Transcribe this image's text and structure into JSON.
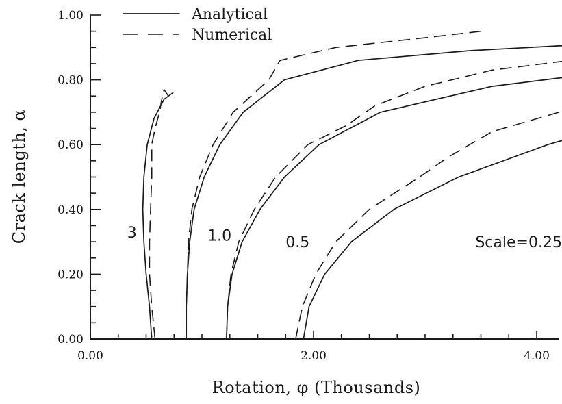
{
  "chart_data": {
    "type": "line",
    "xlabel": "Rotation, φ (Thousands)",
    "ylabel": "Crack length, α",
    "xlim": [
      0,
      5
    ],
    "ylim": [
      0,
      1
    ],
    "x_ticks": [
      {
        "value": 0,
        "label": "0.00"
      },
      {
        "value": 2,
        "label": "2.00"
      },
      {
        "value": 4,
        "label": "4.00"
      }
    ],
    "x_minor_step": 0.25,
    "y_ticks": [
      {
        "value": 0,
        "label": "0.00"
      },
      {
        "value": 0.2,
        "label": "0.20"
      },
      {
        "value": 0.4,
        "label": "0.40"
      },
      {
        "value": 0.6,
        "label": "0.60"
      },
      {
        "value": 0.8,
        "label": "0.80"
      },
      {
        "value": 1.0,
        "label": "1.00"
      }
    ],
    "y_minor_step": 0.05,
    "grid": false,
    "legend": {
      "placement": "top-left",
      "entries": [
        {
          "name": "Analytical",
          "style": "solid"
        },
        {
          "name": "Numerical",
          "style": "dashed"
        }
      ]
    },
    "curve_labels": [
      {
        "text": "3",
        "x": 0.33,
        "y": 0.33
      },
      {
        "text": "1.0",
        "x": 1.05,
        "y": 0.32
      },
      {
        "text": "0.5",
        "x": 1.75,
        "y": 0.3
      },
      {
        "text": "Scale=0.25",
        "x": 3.45,
        "y": 0.3
      }
    ],
    "series": [
      {
        "scale": "3",
        "style": "solid",
        "points": [
          [
            0.55,
            0.0
          ],
          [
            0.53,
            0.1
          ],
          [
            0.5,
            0.2
          ],
          [
            0.48,
            0.3
          ],
          [
            0.47,
            0.4
          ],
          [
            0.48,
            0.5
          ],
          [
            0.51,
            0.6
          ],
          [
            0.57,
            0.68
          ],
          [
            0.66,
            0.74
          ],
          [
            0.74,
            0.76
          ]
        ]
      },
      {
        "scale": "3",
        "style": "dashed",
        "points": [
          [
            0.58,
            0.0
          ],
          [
            0.55,
            0.1
          ],
          [
            0.53,
            0.2
          ],
          [
            0.53,
            0.3
          ],
          [
            0.54,
            0.4
          ],
          [
            0.55,
            0.5
          ],
          [
            0.55,
            0.6
          ],
          [
            0.58,
            0.65
          ],
          [
            0.62,
            0.7
          ],
          [
            0.64,
            0.74
          ],
          [
            0.66,
            0.77
          ],
          [
            0.7,
            0.75
          ]
        ]
      },
      {
        "scale": "1.0",
        "style": "solid",
        "points": [
          [
            0.86,
            0.0
          ],
          [
            0.86,
            0.1
          ],
          [
            0.87,
            0.2
          ],
          [
            0.89,
            0.3
          ],
          [
            0.93,
            0.4
          ],
          [
            1.02,
            0.5
          ],
          [
            1.16,
            0.6
          ],
          [
            1.37,
            0.7
          ],
          [
            1.74,
            0.8
          ],
          [
            2.4,
            0.86
          ],
          [
            3.4,
            0.89
          ],
          [
            4.2,
            0.905
          ],
          [
            5.0,
            0.915
          ]
        ]
      },
      {
        "scale": "1.0",
        "style": "dashed",
        "points": [
          [
            0.86,
            0.0
          ],
          [
            0.86,
            0.1
          ],
          [
            0.87,
            0.2
          ],
          [
            0.88,
            0.3
          ],
          [
            0.91,
            0.4
          ],
          [
            0.98,
            0.5
          ],
          [
            1.1,
            0.6
          ],
          [
            1.28,
            0.7
          ],
          [
            1.6,
            0.8
          ],
          [
            1.7,
            0.86
          ],
          [
            2.2,
            0.9
          ],
          [
            3.0,
            0.93
          ],
          [
            3.5,
            0.95
          ]
        ]
      },
      {
        "scale": "0.5",
        "style": "solid",
        "points": [
          [
            1.22,
            0.0
          ],
          [
            1.23,
            0.1
          ],
          [
            1.27,
            0.2
          ],
          [
            1.36,
            0.3
          ],
          [
            1.52,
            0.4
          ],
          [
            1.74,
            0.5
          ],
          [
            2.05,
            0.6
          ],
          [
            2.6,
            0.7
          ],
          [
            3.6,
            0.78
          ],
          [
            4.3,
            0.81
          ],
          [
            5.0,
            0.835
          ]
        ]
      },
      {
        "scale": "0.5",
        "style": "dashed",
        "points": [
          [
            1.22,
            0.0
          ],
          [
            1.23,
            0.1
          ],
          [
            1.26,
            0.2
          ],
          [
            1.33,
            0.3
          ],
          [
            1.47,
            0.4
          ],
          [
            1.66,
            0.5
          ],
          [
            1.95,
            0.6
          ],
          [
            2.3,
            0.66
          ],
          [
            2.55,
            0.72
          ],
          [
            3.0,
            0.78
          ],
          [
            3.6,
            0.83
          ],
          [
            4.3,
            0.86
          ],
          [
            5.0,
            0.88
          ]
        ]
      },
      {
        "scale": "0.25",
        "style": "solid",
        "points": [
          [
            1.91,
            0.0
          ],
          [
            1.96,
            0.1
          ],
          [
            2.1,
            0.2
          ],
          [
            2.34,
            0.3
          ],
          [
            2.72,
            0.4
          ],
          [
            3.3,
            0.5
          ],
          [
            4.1,
            0.6
          ],
          [
            5.0,
            0.69
          ]
        ]
      },
      {
        "scale": "0.25",
        "style": "dashed",
        "points": [
          [
            1.84,
            0.0
          ],
          [
            1.9,
            0.1
          ],
          [
            2.02,
            0.2
          ],
          [
            2.2,
            0.3
          ],
          [
            2.5,
            0.4
          ],
          [
            2.95,
            0.5
          ],
          [
            3.2,
            0.56
          ],
          [
            3.6,
            0.64
          ],
          [
            4.2,
            0.7
          ],
          [
            5.0,
            0.77
          ]
        ]
      }
    ]
  }
}
